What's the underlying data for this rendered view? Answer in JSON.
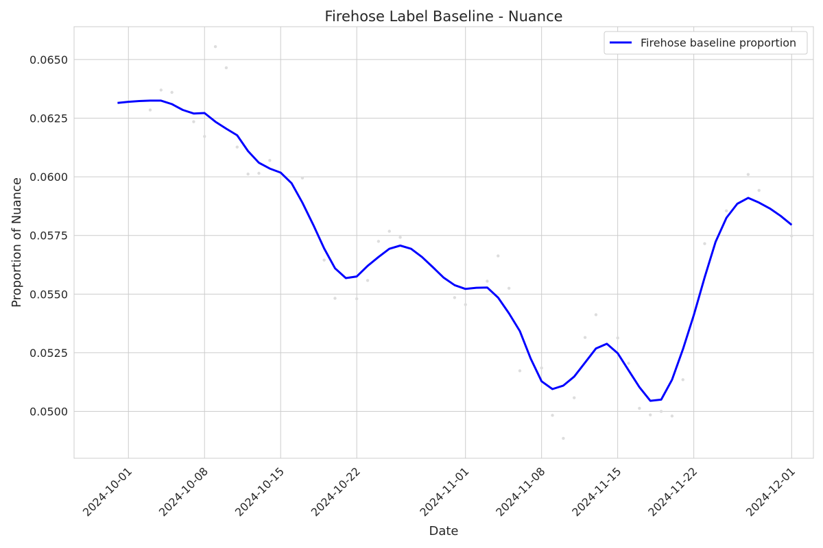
{
  "chart_data": {
    "type": "line",
    "title": "Firehose Label Baseline - Nuance",
    "xlabel": "Date",
    "ylabel": "Proportion of Nuance",
    "x_ticks": [
      "2024-10-01",
      "2024-10-08",
      "2024-10-15",
      "2024-10-22",
      "2024-11-01",
      "2024-11-08",
      "2024-11-15",
      "2024-11-22",
      "2024-12-01"
    ],
    "y_ticks": [
      0.05,
      0.0525,
      0.055,
      0.0575,
      0.06,
      0.0625,
      0.065
    ],
    "y_tick_labels": [
      "0.0500",
      "0.0525",
      "0.0550",
      "0.0575",
      "0.0600",
      "0.0625",
      "0.0650"
    ],
    "xlim": [
      "2024-09-26",
      "2024-12-03"
    ],
    "ylim": [
      0.048,
      0.0664
    ],
    "grid": true,
    "legend": {
      "position": "top-right"
    },
    "colors": {
      "line": "#0000ff",
      "points": "#dddddd",
      "grid": "#cccccc",
      "axes": "#cccccc"
    },
    "series": [
      {
        "name": "Firehose baseline proportion",
        "style": "line",
        "x": [
          "2024-09-30",
          "2024-10-01",
          "2024-10-02",
          "2024-10-03",
          "2024-10-04",
          "2024-10-05",
          "2024-10-06",
          "2024-10-07",
          "2024-10-08",
          "2024-10-09",
          "2024-10-10",
          "2024-10-11",
          "2024-10-12",
          "2024-10-13",
          "2024-10-14",
          "2024-10-15",
          "2024-10-16",
          "2024-10-17",
          "2024-10-18",
          "2024-10-19",
          "2024-10-20",
          "2024-10-21",
          "2024-10-22",
          "2024-10-23",
          "2024-10-24",
          "2024-10-25",
          "2024-10-26",
          "2024-10-27",
          "2024-10-28",
          "2024-10-29",
          "2024-10-30",
          "2024-10-31",
          "2024-11-01",
          "2024-11-02",
          "2024-11-03",
          "2024-11-04",
          "2024-11-05",
          "2024-11-06",
          "2024-11-07",
          "2024-11-08",
          "2024-11-09",
          "2024-11-10",
          "2024-11-11",
          "2024-11-12",
          "2024-11-13",
          "2024-11-14",
          "2024-11-15",
          "2024-11-16",
          "2024-11-17",
          "2024-11-18",
          "2024-11-19",
          "2024-11-20",
          "2024-11-21",
          "2024-11-22",
          "2024-11-23",
          "2024-11-24",
          "2024-11-25",
          "2024-11-26",
          "2024-11-27",
          "2024-11-28",
          "2024-11-29",
          "2024-11-30",
          "2024-12-01"
        ],
        "y": [
          0.06315,
          0.0632,
          0.06323,
          0.06325,
          0.06325,
          0.0631,
          0.06285,
          0.0627,
          0.06272,
          0.06235,
          0.06205,
          0.06177,
          0.0611,
          0.0606,
          0.06035,
          0.06018,
          0.05973,
          0.0589,
          0.05795,
          0.05695,
          0.0561,
          0.05568,
          0.05575,
          0.0562,
          0.05658,
          0.05693,
          0.05707,
          0.05693,
          0.05658,
          0.05615,
          0.0557,
          0.05538,
          0.05522,
          0.05527,
          0.05528,
          0.05485,
          0.05418,
          0.05342,
          0.05225,
          0.05128,
          0.05095,
          0.0511,
          0.05148,
          0.05208,
          0.05268,
          0.05288,
          0.05248,
          0.05175,
          0.05103,
          0.05045,
          0.0505,
          0.05135,
          0.05265,
          0.0541,
          0.05572,
          0.05722,
          0.05825,
          0.05885,
          0.0591,
          0.0589,
          0.05865,
          0.05833,
          0.05795
        ]
      },
      {
        "style": "scatter",
        "x": [
          "2024-10-03",
          "2024-10-04",
          "2024-10-05",
          "2024-10-07",
          "2024-10-08",
          "2024-10-09",
          "2024-10-10",
          "2024-10-11",
          "2024-10-12",
          "2024-10-13",
          "2024-10-14",
          "2024-10-17",
          "2024-10-19",
          "2024-10-20",
          "2024-10-22",
          "2024-10-23",
          "2024-10-24",
          "2024-10-25",
          "2024-10-26",
          "2024-10-31",
          "2024-11-01",
          "2024-11-03",
          "2024-11-04",
          "2024-11-05",
          "2024-11-06",
          "2024-11-08",
          "2024-11-09",
          "2024-11-10",
          "2024-11-11",
          "2024-11-12",
          "2024-11-13",
          "2024-11-15",
          "2024-11-16",
          "2024-11-17",
          "2024-11-18",
          "2024-11-19",
          "2024-11-20",
          "2024-11-21",
          "2024-11-23",
          "2024-11-25",
          "2024-11-27",
          "2024-11-28",
          "2024-12-01"
        ],
        "y": [
          0.06285,
          0.0637,
          0.0636,
          0.06235,
          0.06172,
          0.06555,
          0.06465,
          0.06127,
          0.06012,
          0.06015,
          0.0607,
          0.05995,
          0.05645,
          0.05482,
          0.0548,
          0.05558,
          0.05725,
          0.05768,
          0.05742,
          0.05485,
          0.05455,
          0.05555,
          0.05663,
          0.05525,
          0.05173,
          0.05185,
          0.04983,
          0.04885,
          0.05058,
          0.05315,
          0.05412,
          0.05313,
          0.05205,
          0.05013,
          0.04985,
          0.05,
          0.0498,
          0.05135,
          0.05715,
          0.05855,
          0.0601,
          0.05942,
          0.05748
        ]
      }
    ]
  }
}
